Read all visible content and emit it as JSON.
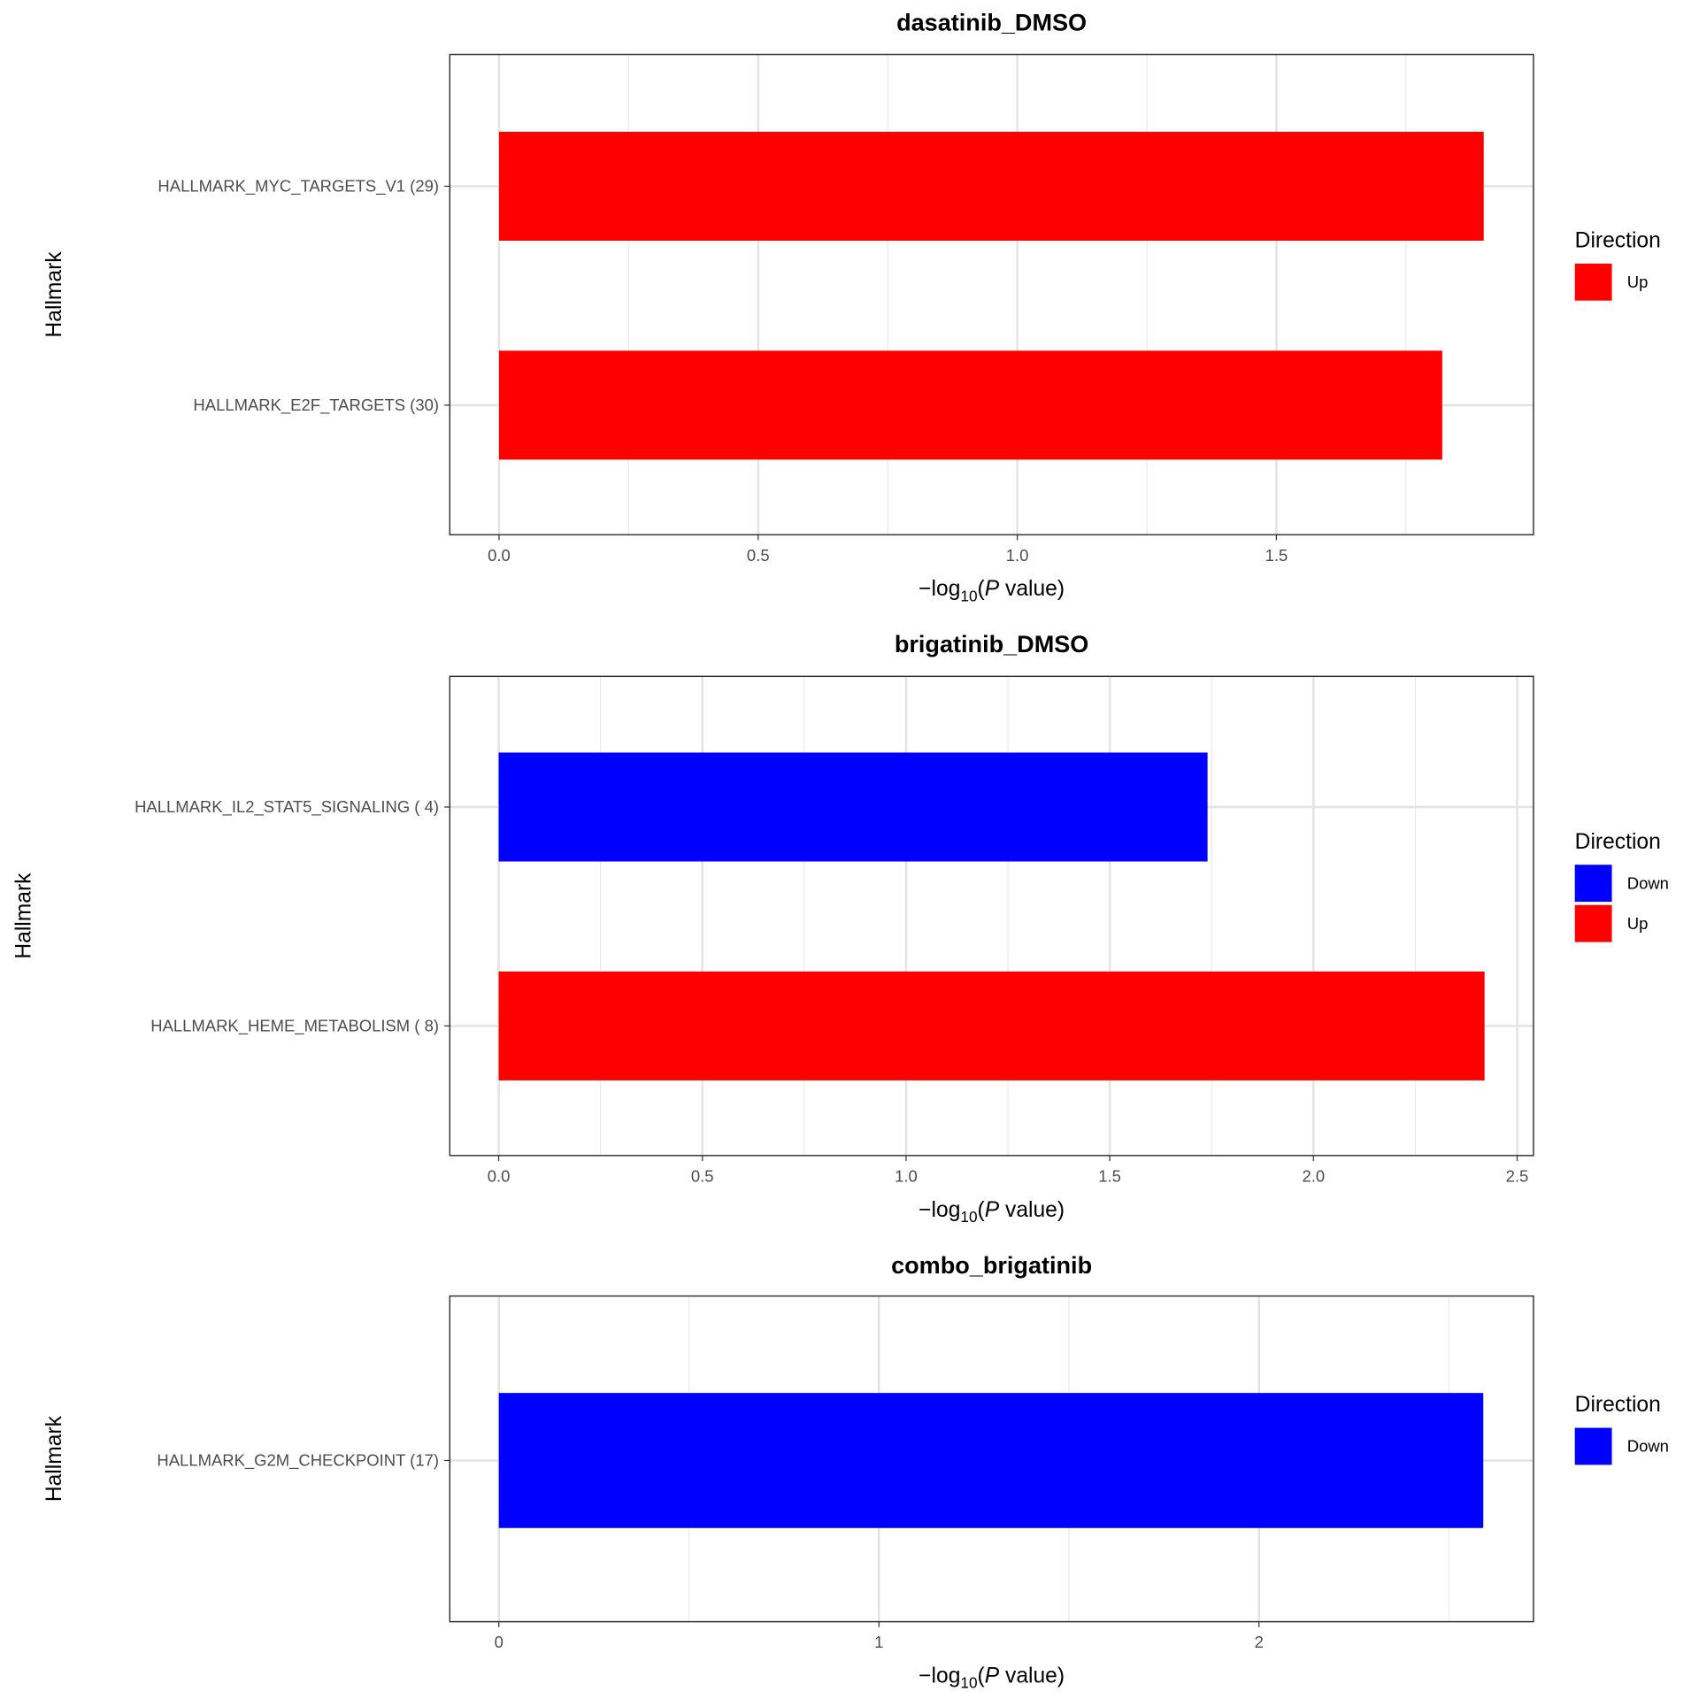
{
  "chart_data": [
    {
      "type": "bar",
      "orientation": "horizontal",
      "title": "dasatinib_DMSO",
      "xlabel": "-log10(P value)",
      "ylabel": "Hallmark",
      "xlim": [
        -0.095,
        1.996
      ],
      "xticks": [
        0,
        0.5,
        1,
        1.5
      ],
      "xtick_labels": [
        "0.0",
        "0.5",
        "1.0",
        "1.5"
      ],
      "categories": [
        "HALLMARK_MYC_TARGETS_V1 (29)",
        "HALLMARK_E2F_TARGETS (30)"
      ],
      "values": [
        1.9,
        1.82
      ],
      "direction": [
        "Up",
        "Up"
      ],
      "legend": {
        "title": "Direction",
        "entries": [
          "Up"
        ],
        "placement": "right"
      }
    },
    {
      "type": "bar",
      "orientation": "horizontal",
      "title": "brigatinib_DMSO",
      "xlabel": "-log10(P value)",
      "ylabel": "Hallmark",
      "xlim": [
        -0.12,
        2.54
      ],
      "xticks": [
        0,
        0.5,
        1,
        1.5,
        2,
        2.5
      ],
      "xtick_labels": [
        "0.0",
        "0.5",
        "1.0",
        "1.5",
        "2.0",
        "2.5"
      ],
      "categories": [
        "HALLMARK_IL2_STAT5_SIGNALING ( 4)",
        "HALLMARK_HEME_METABOLISM ( 8)"
      ],
      "values": [
        1.74,
        2.42
      ],
      "direction": [
        "Down",
        "Up"
      ],
      "legend": {
        "title": "Direction",
        "entries": [
          "Down",
          "Up"
        ],
        "placement": "right"
      }
    },
    {
      "type": "bar",
      "orientation": "horizontal",
      "title": "combo_brigatinib",
      "xlabel": "-log10(P value)",
      "ylabel": "Hallmark",
      "xlim": [
        -0.129,
        2.722
      ],
      "xticks": [
        0,
        1,
        2
      ],
      "xtick_labels": [
        "0",
        "1",
        "2"
      ],
      "categories": [
        "HALLMARK_G2M_CHECKPOINT (17)"
      ],
      "values": [
        2.59
      ],
      "direction": [
        "Down"
      ],
      "legend": {
        "title": "Direction",
        "entries": [
          "Down"
        ],
        "placement": "right"
      }
    }
  ],
  "colors": {
    "Up": "#ff0000",
    "Down": "#0000ff"
  }
}
